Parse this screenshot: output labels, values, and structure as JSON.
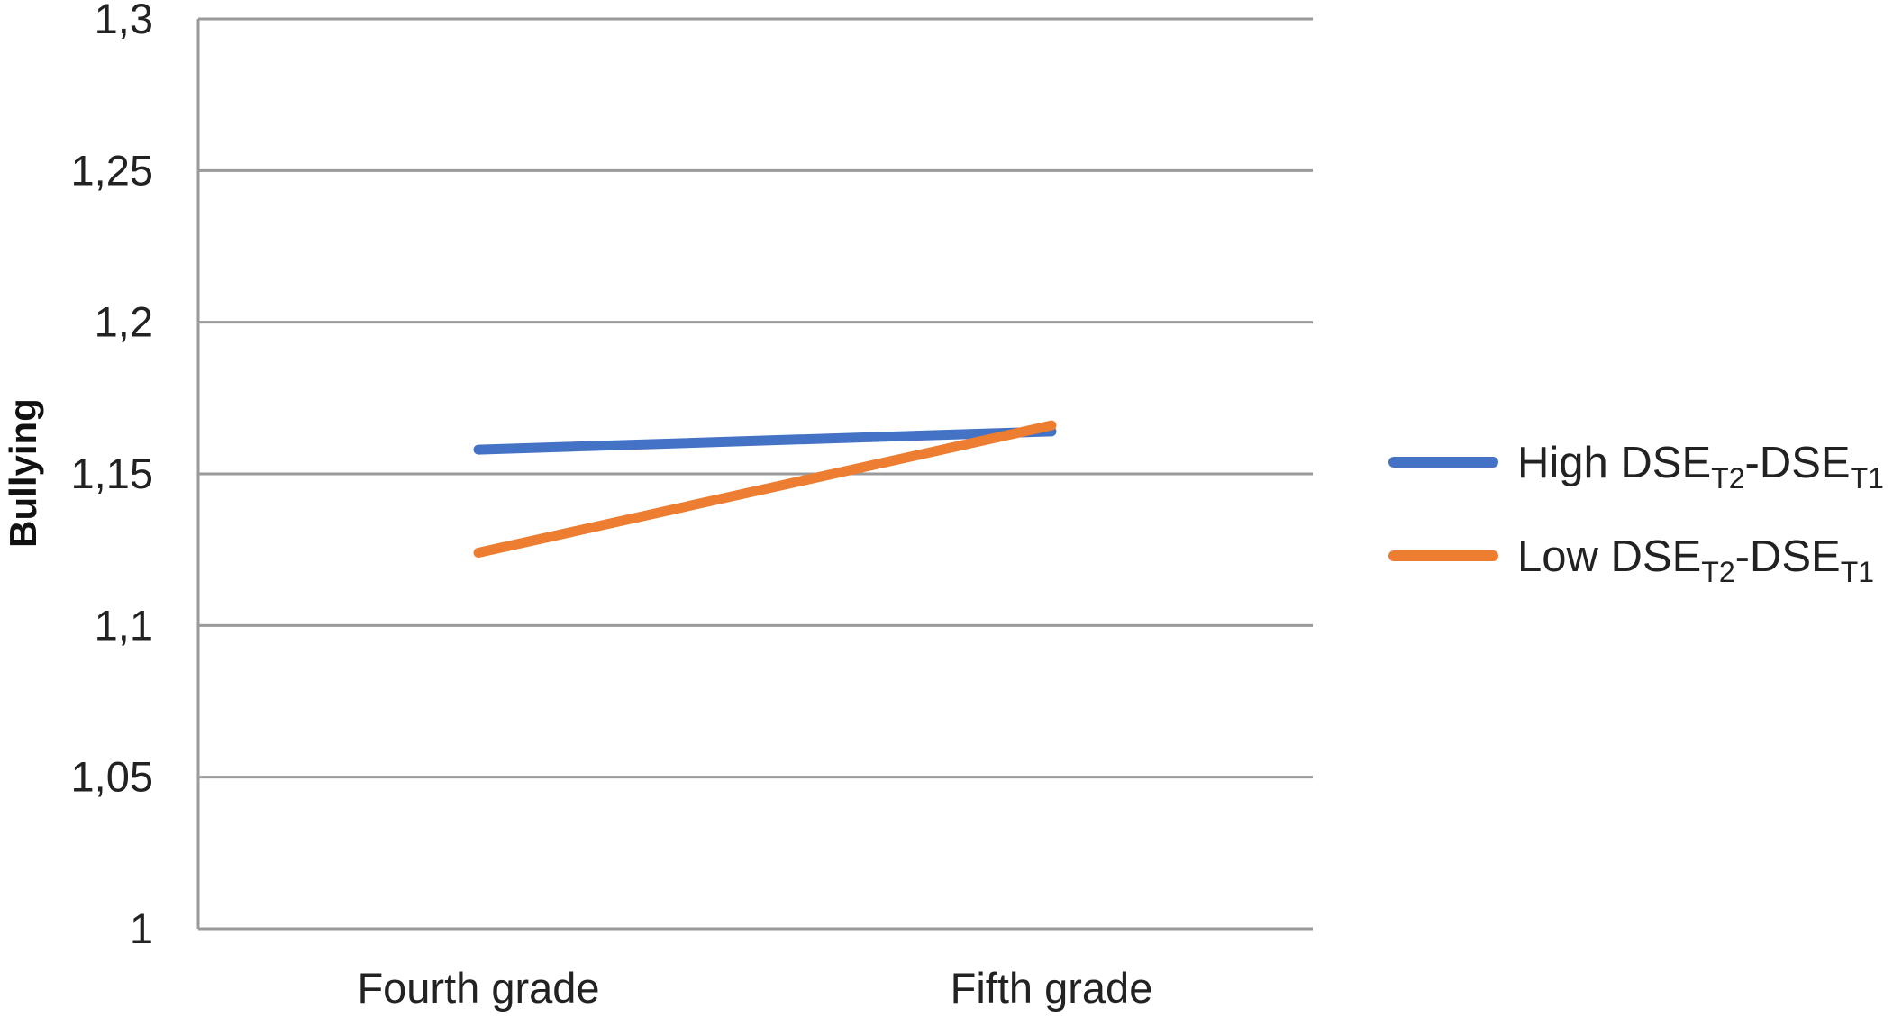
{
  "chart_data": {
    "type": "line",
    "categories": [
      "Fourth grade",
      "Fifth grade"
    ],
    "ylabel": "Bullying",
    "ylim": [
      1,
      1.3
    ],
    "yticks": [
      "1",
      "1,05",
      "1,1",
      "1,15",
      "1,2",
      "1,25",
      "1,3"
    ],
    "grid": true,
    "legend_position": "right",
    "series": [
      {
        "name": "High DSET2-DSET1",
        "legend": {
          "a": "High DSE",
          "sub1": "T2",
          "b": "-DSE",
          "sub2": "T1"
        },
        "color": "#4472C4",
        "values": [
          1.158,
          1.164
        ]
      },
      {
        "name": "Low DSET2-DSET1",
        "legend": {
          "a": "Low DSE",
          "sub1": "T2",
          "b": "-DSE",
          "sub2": "T1"
        },
        "color": "#ED7D31",
        "values": [
          1.124,
          1.166
        ]
      }
    ]
  }
}
